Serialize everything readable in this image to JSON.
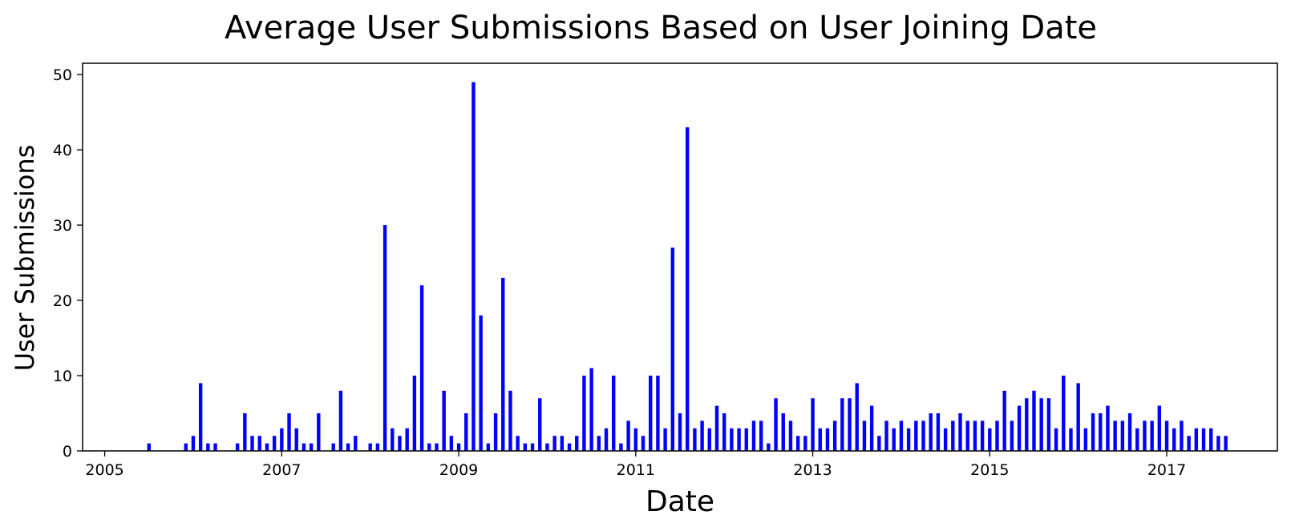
{
  "chart_data": {
    "type": "bar",
    "title": "Average User Submissions Based on User Joining Date",
    "xlabel": "Date",
    "ylabel": "User Submissions",
    "x_range": [
      "2004-10",
      "2018-04"
    ],
    "ylim": [
      0,
      51.5
    ],
    "x_ticks": [
      "2005",
      "2007",
      "2009",
      "2011",
      "2013",
      "2015",
      "2017"
    ],
    "y_ticks": [
      "0",
      "10",
      "20",
      "30",
      "40",
      "50"
    ],
    "grid": false,
    "legend": "none",
    "bar_color": "#0000ff",
    "x": [
      "2005-07",
      "2005-12",
      "2006-01",
      "2006-02",
      "2006-03",
      "2006-04",
      "2006-07",
      "2006-08",
      "2006-09",
      "2006-10",
      "2006-11",
      "2006-12",
      "2007-01",
      "2007-02",
      "2007-03",
      "2007-04",
      "2007-05",
      "2007-06",
      "2007-08",
      "2007-09",
      "2007-10",
      "2007-11",
      "2008-01",
      "2008-02",
      "2008-03",
      "2008-04",
      "2008-05",
      "2008-06",
      "2008-07",
      "2008-08",
      "2008-09",
      "2008-10",
      "2008-11",
      "2008-12",
      "2009-01",
      "2009-02",
      "2009-03",
      "2009-04",
      "2009-05",
      "2009-06",
      "2009-07",
      "2009-08",
      "2009-09",
      "2009-10",
      "2009-11",
      "2009-12",
      "2010-01",
      "2010-02",
      "2010-03",
      "2010-04",
      "2010-05",
      "2010-06",
      "2010-07",
      "2010-08",
      "2010-09",
      "2010-10",
      "2010-11",
      "2010-12",
      "2011-01",
      "2011-02",
      "2011-03",
      "2011-04",
      "2011-05",
      "2011-06",
      "2011-07",
      "2011-08",
      "2011-09",
      "2011-10",
      "2011-11",
      "2011-12",
      "2012-01",
      "2012-02",
      "2012-03",
      "2012-04",
      "2012-05",
      "2012-06",
      "2012-07",
      "2012-08",
      "2012-09",
      "2012-10",
      "2012-11",
      "2012-12",
      "2013-01",
      "2013-02",
      "2013-03",
      "2013-04",
      "2013-05",
      "2013-06",
      "2013-07",
      "2013-08",
      "2013-09",
      "2013-10",
      "2013-11",
      "2013-12",
      "2014-01",
      "2014-02",
      "2014-03",
      "2014-04",
      "2014-05",
      "2014-06",
      "2014-07",
      "2014-08",
      "2014-09",
      "2014-10",
      "2014-11",
      "2014-12",
      "2015-01",
      "2015-02",
      "2015-03",
      "2015-04",
      "2015-05",
      "2015-06",
      "2015-07",
      "2015-08",
      "2015-09",
      "2015-10",
      "2015-11",
      "2015-12",
      "2016-01",
      "2016-02",
      "2016-03",
      "2016-04",
      "2016-05",
      "2016-06",
      "2016-07",
      "2016-08",
      "2016-09",
      "2016-10",
      "2016-11",
      "2016-12",
      "2017-01",
      "2017-02",
      "2017-03",
      "2017-04",
      "2017-05",
      "2017-06",
      "2017-07",
      "2017-08",
      "2017-09"
    ],
    "values": [
      1,
      1,
      2,
      9,
      1,
      1,
      1,
      5,
      2,
      2,
      1,
      2,
      3,
      5,
      3,
      1,
      1,
      5,
      1,
      8,
      1,
      2,
      1,
      1,
      30,
      3,
      2,
      3,
      10,
      22,
      1,
      1,
      8,
      2,
      1,
      5,
      49,
      18,
      1,
      5,
      23,
      8,
      2,
      1,
      1,
      7,
      1,
      2,
      2,
      1,
      2,
      10,
      11,
      2,
      3,
      10,
      1,
      4,
      3,
      2,
      10,
      10,
      3,
      27,
      5,
      43,
      3,
      4,
      3,
      6,
      5,
      3,
      3,
      3,
      4,
      4,
      1,
      7,
      5,
      4,
      2,
      2,
      7,
      3,
      3,
      4,
      7,
      7,
      9,
      4,
      6,
      2,
      4,
      3,
      4,
      3,
      4,
      4,
      5,
      5,
      3,
      4,
      5,
      4,
      4,
      4,
      3,
      4,
      8,
      4,
      6,
      7,
      8,
      7,
      7,
      3,
      10,
      3,
      9,
      3,
      5,
      5,
      6,
      4,
      4,
      5,
      3,
      4,
      4,
      6,
      4,
      3,
      4,
      2,
      3,
      3,
      3,
      2,
      2
    ]
  }
}
